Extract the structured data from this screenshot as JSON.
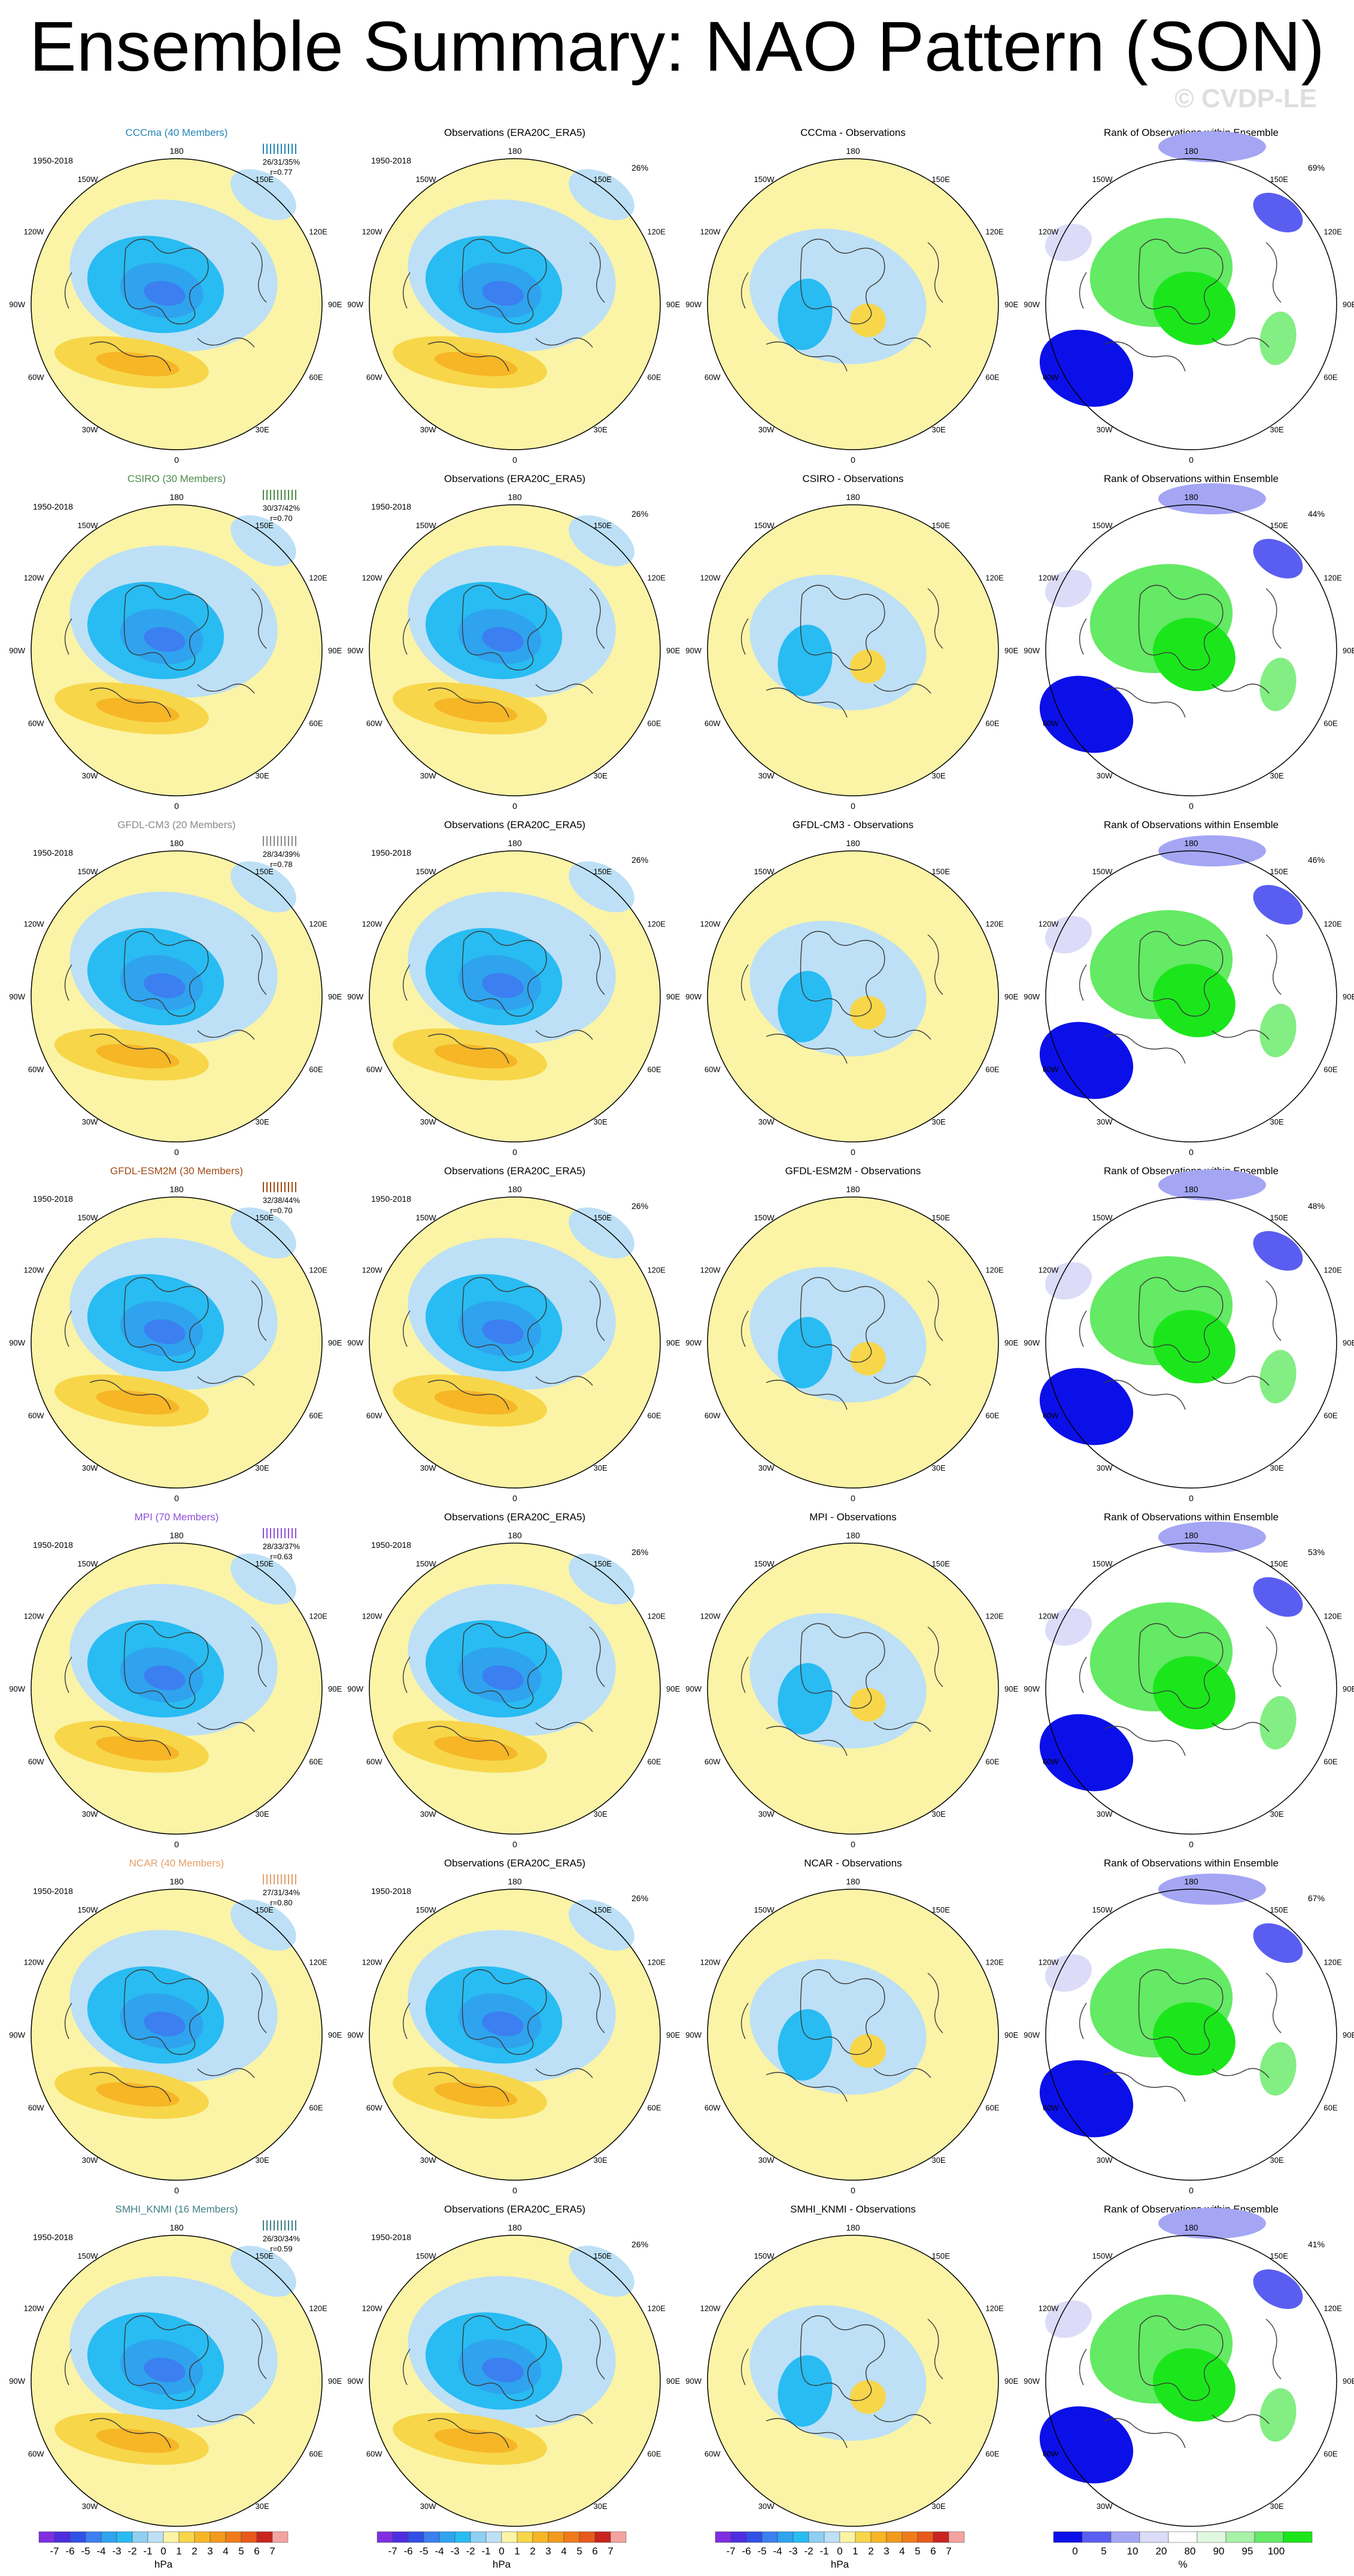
{
  "page": {
    "title": "Ensemble Summary: NAO Pattern (SON)",
    "watermark": "© CVDP-LE"
  },
  "colors": {
    "blue_levels": [
      "#7f2fe0",
      "#4c2ee0",
      "#3150e8",
      "#3b7ff0",
      "#2fa3ee",
      "#28bcf2",
      "#bde0f6"
    ],
    "warm_levels": [
      "#fbf4a6",
      "#f7d64a",
      "#f6b626",
      "#f29a1d",
      "#ef7b1b",
      "#e85a1c",
      "#d63a1c",
      "#c9241f",
      "#f4a3a0"
    ],
    "rank_colors": [
      "#0c10e8",
      "#5a5ef0",
      "#a4a6f4",
      "#dcdcf8",
      "#ffffff",
      "#e0f8e0",
      "#a9f0a9",
      "#64ea64",
      "#1be61b"
    ],
    "model_title_colors": [
      "#2585b4",
      "#4c8a4a",
      "#8a8a8a",
      "#a04a16",
      "#8f4fd6",
      "#e3a06b",
      "#3f7f84"
    ]
  },
  "chart_data": {
    "type": "heatmap",
    "description_levels_hpa": [
      -7,
      -6,
      -5,
      -4,
      -3,
      -2,
      -1,
      0,
      1,
      2,
      3,
      4,
      5,
      6,
      7
    ],
    "map_labels": {
      "top": "180",
      "bottom": "0",
      "left_labels": [
        "150W",
        "120W",
        "90W",
        "60W",
        "30W"
      ],
      "right_labels": [
        "150E",
        "120E",
        "90E",
        "60E",
        "30E"
      ],
      "period": "1950-2018"
    },
    "column_titles": {
      "obs": "Observations (ERA20C_ERA5)",
      "diff_suffix": " - Observations",
      "rank": "Rank of Observations within Ensemble"
    },
    "obs_pct": "26%",
    "rows": [
      {
        "model": "CCCma (40 Members)",
        "name": "CCCma",
        "stats": "26/31/35%",
        "r": "r=0.77",
        "rank_pct": "69%"
      },
      {
        "model": "CSIRO (30 Members)",
        "name": "CSIRO",
        "stats": "30/37/42%",
        "r": "r=0.70",
        "rank_pct": "44%"
      },
      {
        "model": "GFDL-CM3 (20 Members)",
        "name": "GFDL-CM3",
        "stats": "28/34/39%",
        "r": "r=0.78",
        "rank_pct": "46%"
      },
      {
        "model": "GFDL-ESM2M (30 Members)",
        "name": "GFDL-ESM2M",
        "stats": "32/38/44%",
        "r": "r=0.70",
        "rank_pct": "48%"
      },
      {
        "model": "MPI (70 Members)",
        "name": "MPI",
        "stats": "28/33/37%",
        "r": "r=0.63",
        "rank_pct": "53%"
      },
      {
        "model": "NCAR (40 Members)",
        "name": "NCAR",
        "stats": "27/31/34%",
        "r": "r=0.80",
        "rank_pct": "67%"
      },
      {
        "model": "SMHI_KNMI (16 Members)",
        "name": "SMHI_KNMI",
        "stats": "26/30/34%",
        "r": "r=0.59",
        "rank_pct": "41%"
      }
    ],
    "colorbars": {
      "hpa_ticks": [
        "-7",
        "-6",
        "-5",
        "-4",
        "-3",
        "-2",
        "-1",
        "0",
        "1",
        "2",
        "3",
        "4",
        "5",
        "6",
        "7"
      ],
      "hpa_unit": "hPa",
      "rank_ticks": [
        "0",
        "5",
        "10",
        "20",
        "80",
        "90",
        "95",
        "100"
      ],
      "rank_unit": "%"
    }
  }
}
